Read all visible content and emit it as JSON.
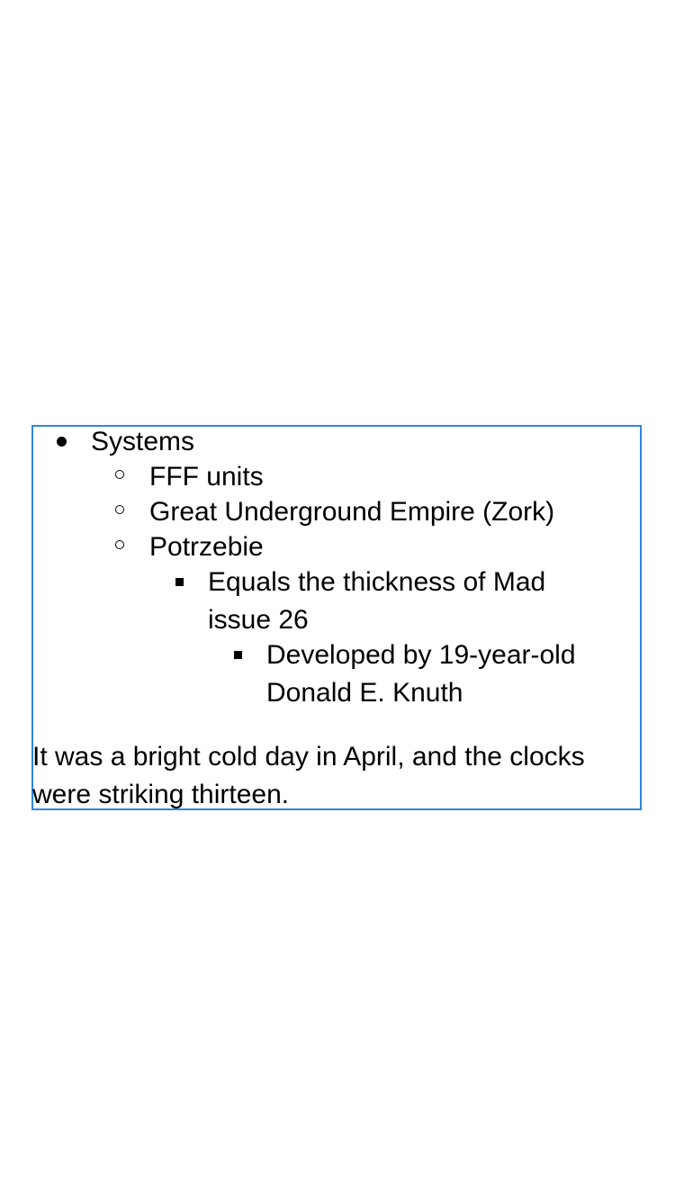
{
  "list": {
    "level1": {
      "text": "Systems",
      "bullet_icon": "disc-icon"
    },
    "level2": [
      {
        "text": "FFF units",
        "bullet_icon": "circle-icon"
      },
      {
        "text": "Great Underground Empire (Zork)",
        "bullet_icon": "circle-icon"
      },
      {
        "text": "Potrzebie",
        "bullet_icon": "circle-icon"
      }
    ],
    "level3": {
      "text_line1": "Equals the thickness of Mad",
      "text_line2": "issue 26",
      "bullet_icon": "square-icon"
    },
    "level4": {
      "text_line1": "Developed by 19-year-old",
      "text_line2": "Donald E. Knuth",
      "bullet_icon": "square-icon"
    }
  },
  "paragraph": {
    "line1": "It was a bright cold day in April, and the clocks",
    "line2": "were striking thirteen."
  },
  "colors": {
    "selection_border": "#2f86e0",
    "text": "#000000",
    "background": "#ffffff"
  }
}
